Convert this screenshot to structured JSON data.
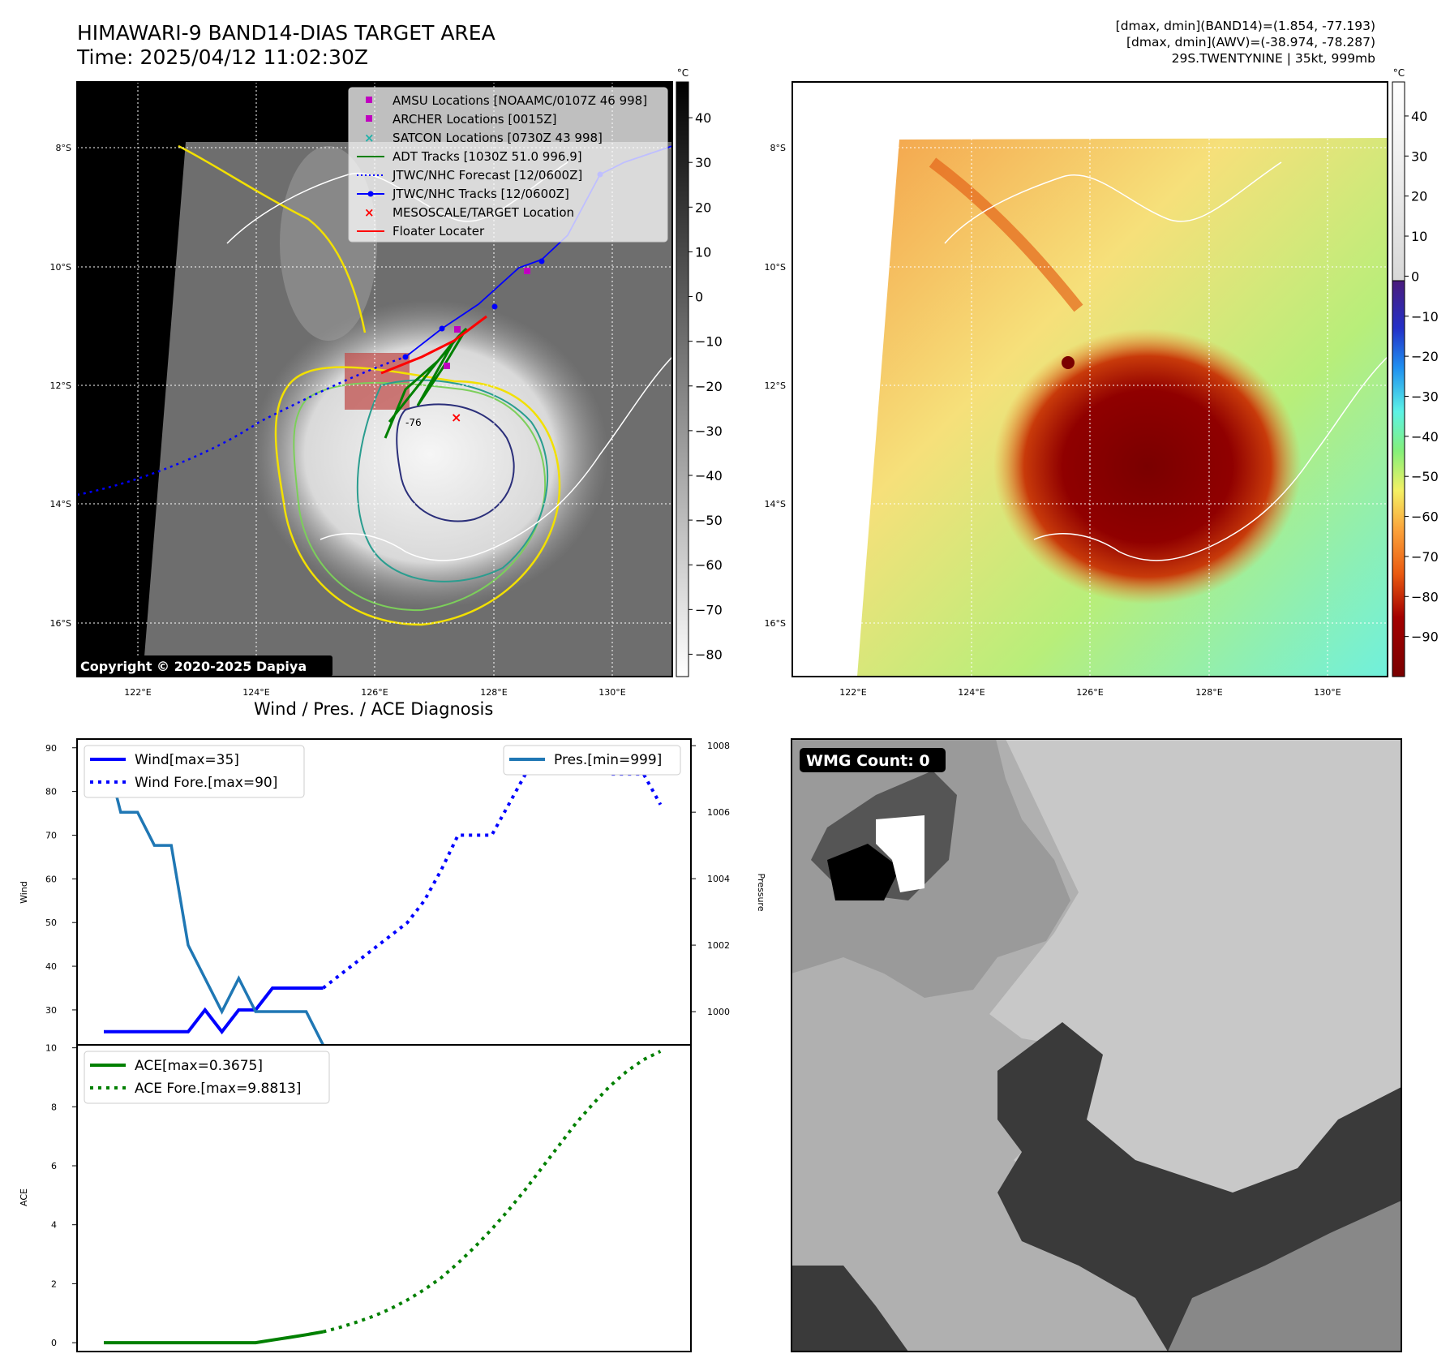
{
  "header": {
    "title_line1": "HIMAWARI-9 BAND14-DIAS TARGET AREA",
    "title_line2": "Time: 2025/04/12 11:02:30Z",
    "right_line1": "[dmax, dmin](BAND14)=(1.854, -77.193)",
    "right_line2": "[dmax, dmin](AWV)=(-38.974, -78.287)",
    "right_line3": "29S.TWENTYNINE | 35kt, 999mb"
  },
  "maps": {
    "lat_labels": [
      "8°S",
      "10°S",
      "12°S",
      "14°S",
      "16°S"
    ],
    "lon_labels": [
      "122°E",
      "124°E",
      "126°E",
      "128°E",
      "130°E"
    ],
    "copyright": "Copyright © 2020-2025 Dapiya",
    "contour_label": "-76",
    "colorbar_unit": "°C",
    "left_colorbar_ticks": [
      "40",
      "30",
      "20",
      "10",
      "0",
      "−10",
      "−20",
      "−30",
      "−40",
      "−50",
      "−60",
      "−70",
      "−80"
    ],
    "right_colorbar_ticks": [
      "40",
      "30",
      "20",
      "10",
      "0",
      "−10",
      "−20",
      "−30",
      "−40",
      "−50",
      "−60",
      "−70",
      "−80",
      "−90"
    ],
    "legend": [
      {
        "label": "AMSU Locations [NOAAMC/0107Z 46 998]",
        "color": "#c000c0",
        "marker": "square"
      },
      {
        "label": "ARCHER Locations [0015Z]",
        "color": "#c000c0",
        "marker": "square"
      },
      {
        "label": "SATCON Locations [0730Z 43 998]",
        "color": "#20b2aa",
        "marker": "x"
      },
      {
        "label": "ADT Tracks [1030Z 51.0 996.9]",
        "color": "#008000",
        "marker": "line"
      },
      {
        "label": "JTWC/NHC Forecast [12/0600Z]",
        "color": "#0000ff",
        "marker": "dotted"
      },
      {
        "label": "JTWC/NHC Tracks [12/0600Z]",
        "color": "#0000ff",
        "marker": "line-dot"
      },
      {
        "label": "MESOSCALE/TARGET Location",
        "color": "#ff0000",
        "marker": "x"
      },
      {
        "label": "Floater Locater",
        "color": "#ff0000",
        "marker": "line"
      }
    ]
  },
  "diagnosis": {
    "title": "Wind / Pres. / ACE Diagnosis",
    "wind_ylabel": "Wind",
    "pres_ylabel": "Pressure",
    "ace_ylabel": "ACE",
    "legend_wind": "Wind[max=35]",
    "legend_wind_fore": "Wind Fore.[max=90]",
    "legend_pres": "Pres.[min=999]",
    "legend_ace": "ACE[max=0.3675]",
    "legend_ace_fore": "ACE Fore.[max=9.8813]",
    "wmg_label": "WMG Count: 0"
  },
  "chart_data": [
    {
      "type": "line",
      "title": "Wind / Pres. / ACE Diagnosis",
      "ylabel": "Wind",
      "ylim": [
        22,
        92
      ],
      "x": [
        0,
        1,
        2,
        3,
        4,
        5,
        6,
        7,
        8,
        9,
        10,
        11,
        12,
        13,
        14,
        15,
        16,
        17,
        18,
        19,
        20,
        21,
        22,
        23,
        24,
        25,
        26,
        27,
        28,
        29,
        30,
        31,
        32,
        33
      ],
      "series": [
        {
          "name": "Wind[max=35]",
          "color": "#0000ff",
          "style": "solid",
          "x": [
            0,
            1,
            2,
            3,
            4,
            5,
            6,
            7,
            8,
            9,
            10,
            11,
            12,
            13
          ],
          "values": [
            25,
            25,
            25,
            25,
            25,
            25,
            30,
            25,
            30,
            30,
            35,
            35,
            35,
            35
          ]
        },
        {
          "name": "Wind Fore.[max=90]",
          "color": "#0000ff",
          "style": "dotted",
          "x": [
            13,
            14,
            15,
            16,
            17,
            18,
            19,
            20,
            21,
            22,
            23,
            24,
            25,
            26,
            27,
            28,
            29,
            30,
            31,
            32,
            33
          ],
          "values": [
            35,
            38,
            41,
            44,
            47,
            50,
            55,
            62,
            70,
            70,
            70,
            77,
            84,
            90,
            90,
            90,
            88,
            84,
            84,
            84,
            77
          ]
        }
      ],
      "secondary": {
        "ylabel": "Pressure",
        "ylim": [
          999,
          1008.2
        ],
        "series": [
          {
            "name": "Pres.[min=999]",
            "color": "#1f77b4",
            "style": "solid",
            "x": [
              0,
              1,
              2,
              3,
              4,
              5,
              6,
              7,
              8,
              9,
              10,
              11,
              12,
              13
            ],
            "values": [
              1008,
              1006,
              1006,
              1005,
              1005,
              1002,
              1001,
              1000,
              1001,
              1000,
              1000,
              1000,
              1000,
              999
            ]
          }
        ]
      }
    },
    {
      "type": "line",
      "ylabel": "ACE",
      "ylim": [
        -0.3,
        10.1
      ],
      "series": [
        {
          "name": "ACE[max=0.3675]",
          "color": "#008000",
          "style": "solid",
          "x": [
            0,
            1,
            2,
            3,
            4,
            5,
            6,
            7,
            8,
            9,
            10,
            11,
            12,
            13
          ],
          "values": [
            0,
            0,
            0,
            0,
            0,
            0,
            0,
            0,
            0,
            0,
            0.09,
            0.18,
            0.27,
            0.3675
          ]
        },
        {
          "name": "ACE Fore.[max=9.8813]",
          "color": "#008000",
          "style": "dotted",
          "x": [
            13,
            14,
            15,
            16,
            17,
            18,
            19,
            20,
            21,
            22,
            23,
            24,
            25,
            26,
            27,
            28,
            29,
            30,
            31,
            32,
            33
          ],
          "values": [
            0.3675,
            0.52,
            0.7,
            0.9,
            1.15,
            1.45,
            1.8,
            2.2,
            2.7,
            3.25,
            3.85,
            4.5,
            5.2,
            5.95,
            6.7,
            7.45,
            8.1,
            8.7,
            9.2,
            9.6,
            9.8813
          ]
        }
      ],
      "yticks": [
        0,
        2,
        4,
        6,
        8,
        10
      ]
    }
  ]
}
